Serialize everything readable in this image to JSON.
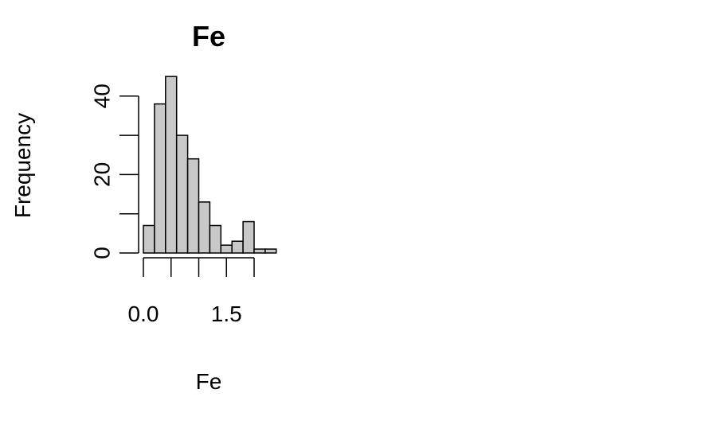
{
  "chart_data": {
    "type": "bar",
    "title": "Fe",
    "xlabel": "Fe",
    "ylabel": "Frequency",
    "bin_edges": [
      0.0,
      0.2,
      0.4,
      0.6,
      0.8,
      1.0,
      1.2,
      1.4,
      1.6,
      1.8,
      2.0,
      2.2,
      2.4
    ],
    "values": [
      7,
      38,
      45,
      30,
      24,
      13,
      7,
      2,
      3,
      8,
      1,
      1
    ],
    "x_ticks": [
      0.0,
      0.5,
      1.0,
      1.5,
      2.0
    ],
    "x_tick_labels": [
      "0.0",
      "",
      "",
      "1.5",
      ""
    ],
    "y_ticks": [
      0,
      10,
      20,
      30,
      40
    ],
    "y_tick_labels": [
      "0",
      "",
      "20",
      "",
      "40"
    ],
    "bar_color": "#c8c8c8",
    "grid": false,
    "legend": "none"
  }
}
